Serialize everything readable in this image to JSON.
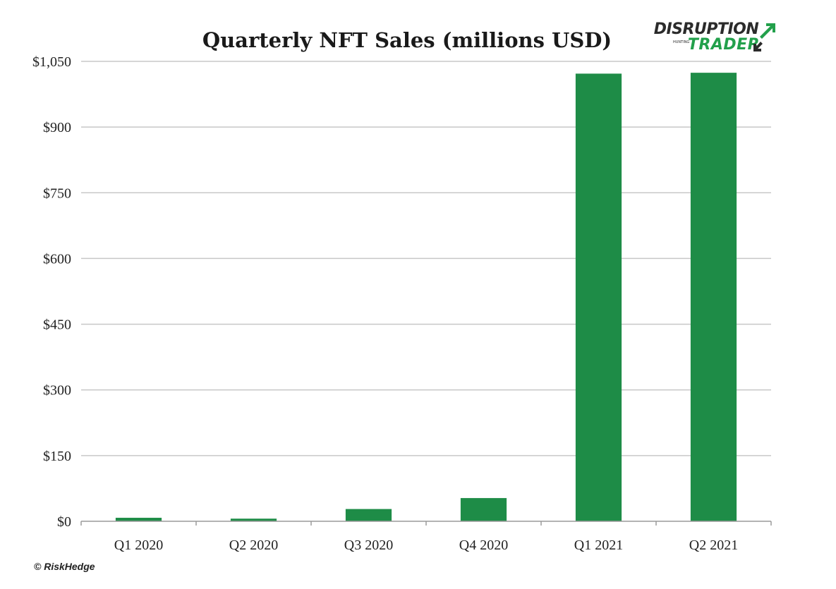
{
  "chart_data": {
    "type": "bar",
    "title": "Quarterly NFT Sales (millions USD)",
    "categories": [
      "Q1 2020",
      "Q2 2020",
      "Q3 2020",
      "Q4 2020",
      "Q1 2021",
      "Q2 2021"
    ],
    "values": [
      8,
      6,
      28,
      53,
      1022,
      1024
    ],
    "ylim": [
      0,
      1050
    ],
    "yticks": [
      0,
      150,
      300,
      450,
      600,
      750,
      900,
      1050
    ],
    "ytick_labels": [
      "$0",
      "$150",
      "$300",
      "$450",
      "$600",
      "$750",
      "$900",
      "$1,050"
    ],
    "grid": true,
    "bar_color": "#1e8c47",
    "xlabel": "",
    "ylabel": ""
  },
  "logo": {
    "line1": "DISRUPTION",
    "line1_small": "HUNTING",
    "line2": "TRADER",
    "accent_color": "#22a04b",
    "arrow_icon": "double-arrow-icon"
  },
  "credit": "© RiskHedge"
}
